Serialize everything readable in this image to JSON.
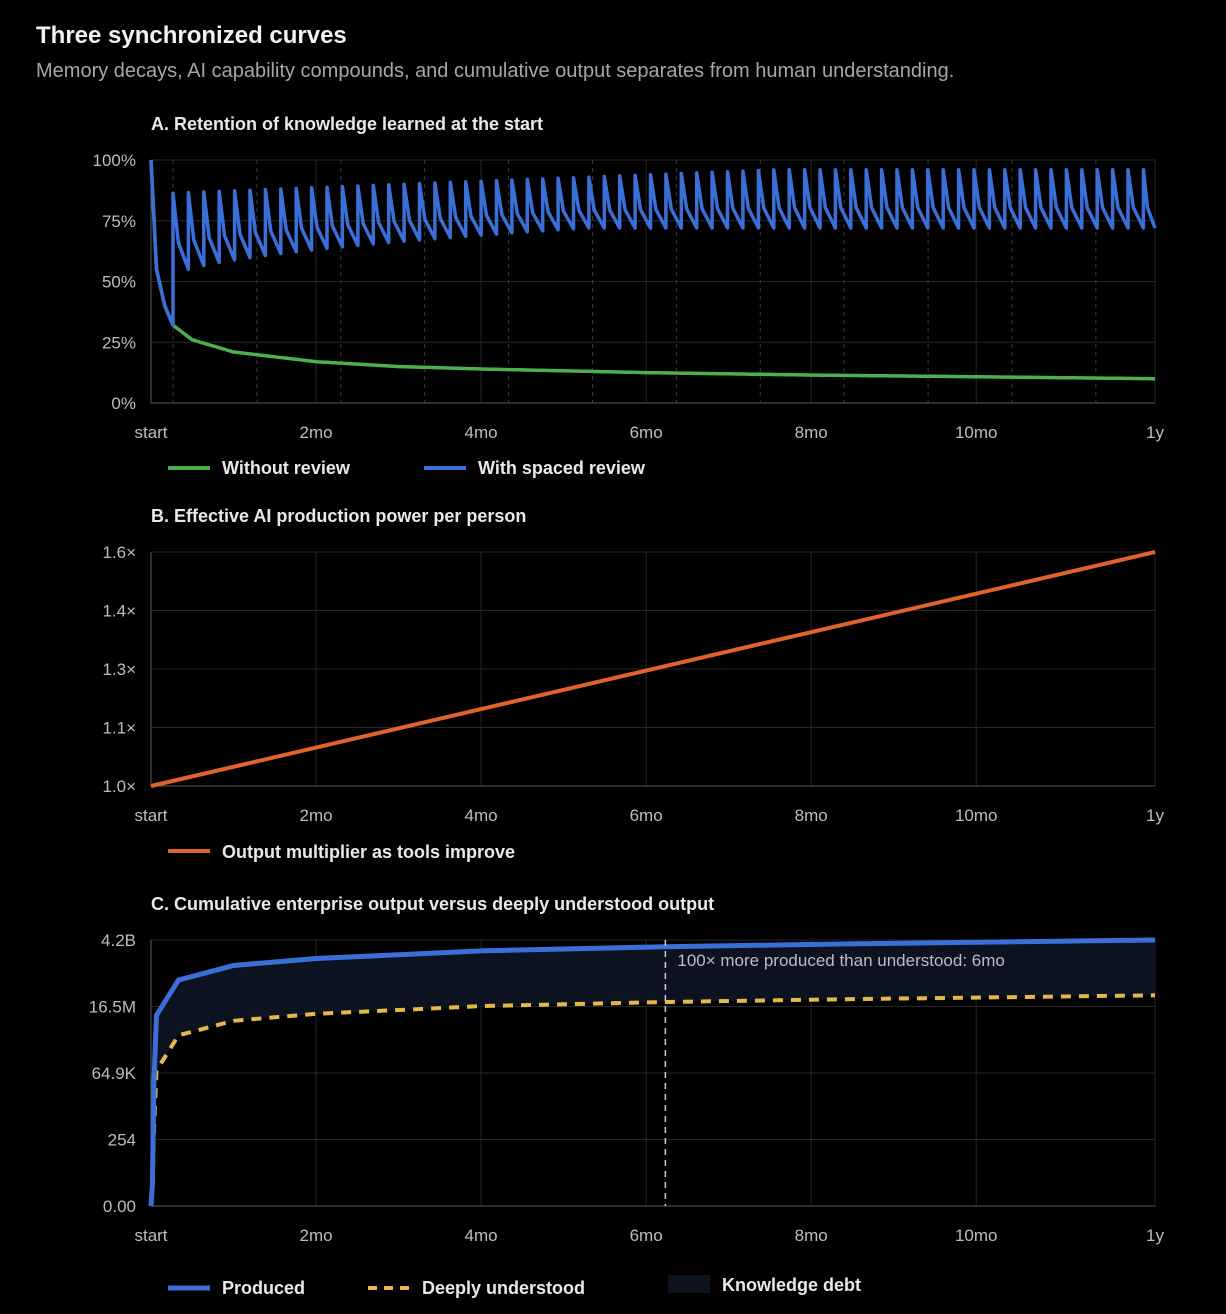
{
  "header": {
    "title": "Three synchronized curves",
    "subtitle": "Memory decays, AI capability compounds, and cumulative output separates from human understanding."
  },
  "colors": {
    "background": "#000000",
    "green": "#4caf50",
    "blue": "#3a6fd8",
    "orange": "#e0622d",
    "yellow": "#e6b84a",
    "debt_fill": "#0c1220",
    "grid": "#262626",
    "axis": "#5a5a5a"
  },
  "chart_data": [
    {
      "id": "A",
      "type": "line",
      "title": "A. Retention of knowledge learned at the start",
      "x_ticks": [
        "start",
        "2mo",
        "4mo",
        "6mo",
        "8mo",
        "10mo",
        "1y"
      ],
      "x_unit": "days",
      "xlim": [
        0,
        365
      ],
      "y_ticks": [
        "0%",
        "25%",
        "50%",
        "75%",
        "100%"
      ],
      "ylim": [
        0,
        100
      ],
      "y_unit": "percent",
      "legend": [
        "Without review",
        "With spaced review"
      ],
      "series": [
        {
          "name": "Without review",
          "color": "#4caf50",
          "points": [
            [
              0,
              100
            ],
            [
              2,
              55
            ],
            [
              5,
              40
            ],
            [
              8,
              32
            ],
            [
              15,
              26
            ],
            [
              30,
              21
            ],
            [
              60,
              17
            ],
            [
              90,
              15
            ],
            [
              120,
              14
            ],
            [
              180,
              12.5
            ],
            [
              240,
              11.5
            ],
            [
              300,
              10.8
            ],
            [
              365,
              10
            ]
          ]
        },
        {
          "name": "With spaced review",
          "color": "#3a6fd8",
          "description": "sawtooth — rises to a peak at each review, then decays before the next review",
          "review_interval_days": 5.6,
          "first_review_day": 8,
          "peak_start": 86,
          "peak_end": 96,
          "trough_start": 50,
          "trough_end": 72
        }
      ]
    },
    {
      "id": "B",
      "type": "line",
      "title": "B. Effective AI production power per person",
      "x_ticks": [
        "start",
        "2mo",
        "4mo",
        "6mo",
        "8mo",
        "10mo",
        "1y"
      ],
      "x_unit": "days",
      "xlim": [
        0,
        365
      ],
      "y_ticks": [
        "1.0×",
        "1.1×",
        "1.3×",
        "1.4×",
        "1.6×"
      ],
      "ylim": [
        1.0,
        1.6
      ],
      "legend": [
        "Output multiplier as tools improve"
      ],
      "series": [
        {
          "name": "Output multiplier as tools improve",
          "color": "#e0622d",
          "points": [
            [
              0,
              1.0
            ],
            [
              365,
              1.6
            ]
          ]
        }
      ]
    },
    {
      "id": "C",
      "type": "line",
      "title": "C. Cumulative enterprise output versus deeply understood output",
      "x_ticks": [
        "start",
        "2mo",
        "4mo",
        "6mo",
        "8mo",
        "10mo",
        "1y"
      ],
      "x_unit": "days",
      "xlim": [
        0,
        365
      ],
      "y_ticks": [
        "0.00",
        "254",
        "64.9K",
        "16.5M",
        "4.2B"
      ],
      "y_scale": "log",
      "legend": [
        "Produced",
        "Deeply understood",
        "Knowledge debt"
      ],
      "annotation": {
        "text": "100× more produced than understood: 6mo",
        "x": 187
      },
      "series": [
        {
          "name": "Produced",
          "color": "#3a6fd8",
          "points": [
            [
              0,
              0
            ],
            [
              0.5,
              5
            ],
            [
              1,
              20000
            ],
            [
              2,
              8000000
            ],
            [
              10,
              150000000
            ],
            [
              30,
              500000000
            ],
            [
              60,
              900000000
            ],
            [
              120,
              1700000000
            ],
            [
              187,
              2400000000
            ],
            [
              250,
              3000000000
            ],
            [
              365,
              4200000000
            ]
          ]
        },
        {
          "name": "Deeply understood",
          "color": "#e6b84a",
          "points": [
            [
              0,
              0
            ],
            [
              0.5,
              2
            ],
            [
              1,
              400
            ],
            [
              2,
              80000
            ],
            [
              10,
              1500000
            ],
            [
              30,
              5000000
            ],
            [
              60,
              9000000
            ],
            [
              120,
              17000000
            ],
            [
              187,
              24000000
            ],
            [
              250,
              30000000
            ],
            [
              365,
              42000000
            ]
          ]
        }
      ]
    }
  ]
}
